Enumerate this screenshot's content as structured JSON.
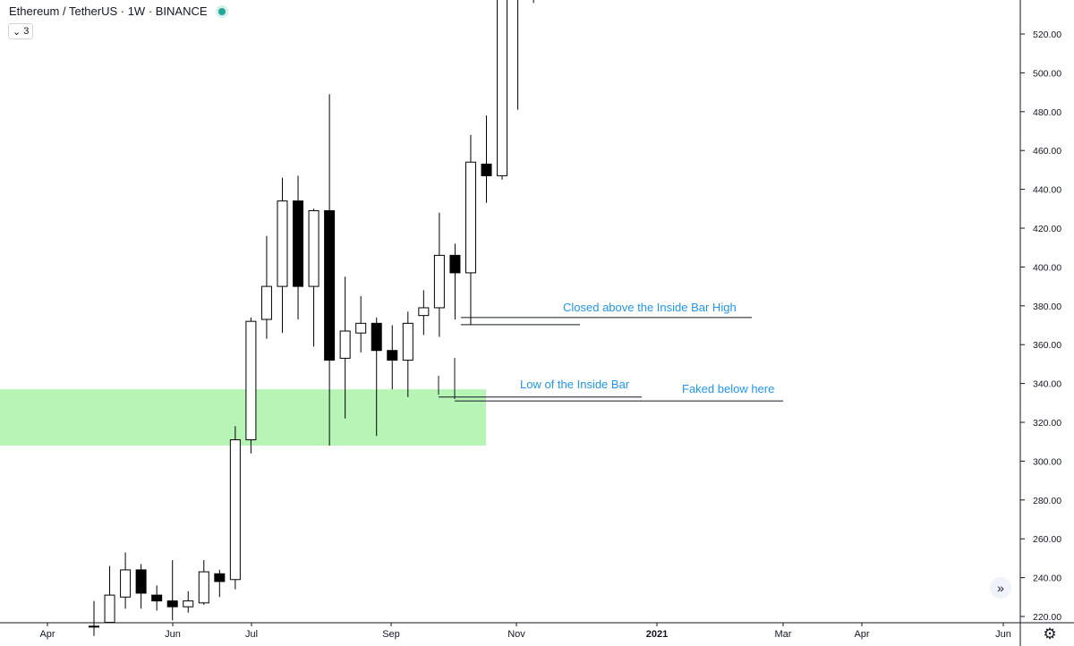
{
  "legend": {
    "title": "Ethereum / TetherUS · 1W · BINANCE",
    "collapse_count": "3"
  },
  "icons": {
    "collapse": "chevron-down-icon",
    "scroll": "double-chevron-right-icon",
    "settings": "gear-icon"
  },
  "colors": {
    "up_body": "#ffffff",
    "down_body": "#000000",
    "wick": "#000000",
    "zone": "#b6f5b6",
    "annotation_text": "#2196f3",
    "status_dot": "#26a69a"
  },
  "chart_data": {
    "type": "candlestick",
    "y_axis": {
      "min": 215,
      "max": 540,
      "ticks": [
        "220.00",
        "240.00",
        "260.00",
        "280.00",
        "300.00",
        "320.00",
        "340.00",
        "360.00",
        "380.00",
        "400.00",
        "420.00",
        "440.00",
        "460.00",
        "480.00",
        "500.00",
        "520.00"
      ]
    },
    "x_axis": {
      "labels": [
        "Apr",
        "Jun",
        "Jul",
        "Sep",
        "Nov",
        "2021",
        "Mar",
        "Apr",
        "Jun"
      ]
    },
    "candles": [
      {
        "o": 215,
        "h": 228,
        "l": 210,
        "c": 215
      },
      {
        "o": 217,
        "h": 246,
        "l": 217,
        "c": 231
      },
      {
        "o": 230,
        "h": 253,
        "l": 224,
        "c": 244
      },
      {
        "o": 244,
        "h": 247,
        "l": 224,
        "c": 232
      },
      {
        "o": 231,
        "h": 236,
        "l": 223,
        "c": 228
      },
      {
        "o": 228,
        "h": 249,
        "l": 218,
        "c": 225
      },
      {
        "o": 225,
        "h": 233,
        "l": 222,
        "c": 228
      },
      {
        "o": 227,
        "h": 249,
        "l": 226,
        "c": 243
      },
      {
        "o": 242,
        "h": 244,
        "l": 230,
        "c": 238
      },
      {
        "o": 239,
        "h": 318,
        "l": 234,
        "c": 311
      },
      {
        "o": 311,
        "h": 374,
        "l": 304,
        "c": 372
      },
      {
        "o": 373,
        "h": 416,
        "l": 363,
        "c": 390
      },
      {
        "o": 390,
        "h": 446,
        "l": 366,
        "c": 434
      },
      {
        "o": 434,
        "h": 447,
        "l": 373,
        "c": 390
      },
      {
        "o": 390,
        "h": 430,
        "l": 359,
        "c": 429
      },
      {
        "o": 429,
        "h": 489,
        "l": 308,
        "c": 352
      },
      {
        "o": 353,
        "h": 395,
        "l": 322,
        "c": 367
      },
      {
        "o": 366,
        "h": 385,
        "l": 356,
        "c": 371
      },
      {
        "o": 371,
        "h": 374,
        "l": 313,
        "c": 357
      },
      {
        "o": 357,
        "h": 370,
        "l": 337,
        "c": 352
      },
      {
        "o": 352,
        "h": 377,
        "l": 333,
        "c": 371
      },
      {
        "o": 375,
        "h": 388,
        "l": 365,
        "c": 379
      },
      {
        "o": 379,
        "h": 428,
        "l": 364,
        "c": 406
      },
      {
        "o": 406,
        "h": 412,
        "l": 373,
        "c": 397
      },
      {
        "o": 397,
        "h": 468,
        "l": 370,
        "c": 454
      },
      {
        "o": 453,
        "h": 478,
        "l": 433,
        "c": 447
      },
      {
        "o": 447,
        "h": 580,
        "l": 445,
        "c": 560
      },
      {
        "o": 560,
        "h": 600,
        "l": 481,
        "c": 560
      },
      {
        "o": 560,
        "h": 600,
        "l": 536,
        "c": 560
      }
    ],
    "zone": {
      "from": 308,
      "to": 337
    },
    "annotations": [
      {
        "text": "Closed above the Inside Bar High",
        "price": 374
      },
      {
        "text": "Low of the Inside Bar",
        "price": 333
      },
      {
        "text": "Faked below here",
        "price": 331
      }
    ]
  }
}
